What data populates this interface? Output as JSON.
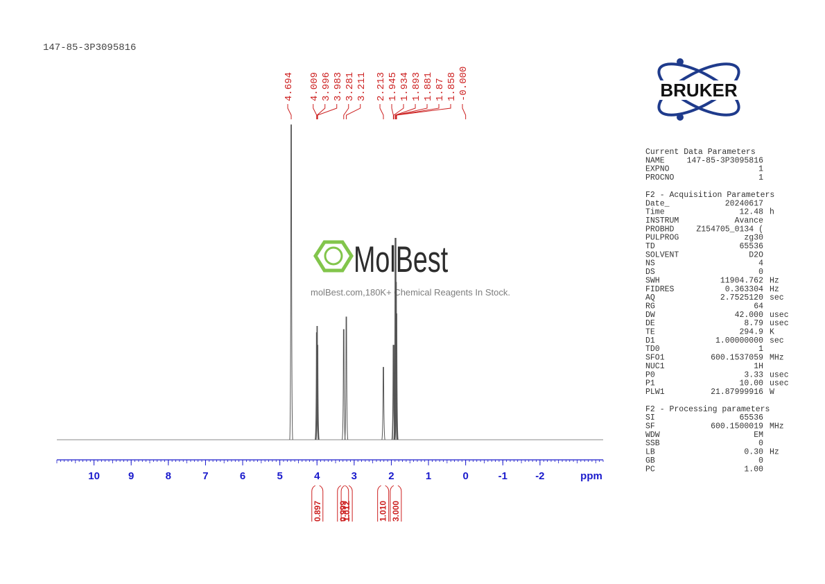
{
  "header": {
    "title": "147-85-3P3095816"
  },
  "watermark": {
    "brand": "MolBest",
    "tagline": "molBest.com,180K+ Chemical Reagents In Stock."
  },
  "logo": {
    "text": "BRUKER"
  },
  "chart_data": {
    "type": "nmr",
    "x": [
      4.694,
      4.009,
      3.996,
      3.983,
      3.281,
      3.211,
      2.213,
      1.945,
      1.934,
      1.893,
      1.881,
      1.87,
      1.858
    ],
    "values": [
      100,
      34,
      36,
      30,
      35,
      39,
      23,
      30,
      30,
      64,
      64,
      50,
      40
    ],
    "color": "#555555",
    "ylim": [
      0,
      100
    ],
    "xlim": [
      11,
      -3.7
    ],
    "xticks": [
      10,
      9,
      8,
      7,
      6,
      5,
      4,
      3,
      2,
      1,
      0,
      -1,
      -2
    ],
    "xlabel": "ppm",
    "tick_color": "#1a1acc",
    "peak_color": "#cc1f1f",
    "peak_labels": [
      4.694,
      4.009,
      3.996,
      3.983,
      3.281,
      3.211,
      2.213,
      1.945,
      1.934,
      1.893,
      1.881,
      1.87,
      1.858,
      {
        "value": 0,
        "label": "-0.000"
      }
    ],
    "integral_centers": [
      3.99,
      3.3,
      3.2,
      2.22,
      1.88
    ],
    "integrals": [
      0.897,
      0.999,
      1.012,
      {
        "value": 1.01,
        "label": "1.010"
      },
      {
        "value": 3,
        "label": "3.000"
      }
    ]
  },
  "parameters": {
    "sections": [
      {
        "title": "Current Data Parameters",
        "rows": [
          [
            "NAME",
            "147-85-3P3095816"
          ],
          [
            "EXPNO",
            "1"
          ],
          [
            "PROCNO",
            "1"
          ]
        ]
      },
      {
        "title": "F2 - Acquisition Parameters",
        "rows": [
          [
            "Date_",
            "20240617"
          ],
          [
            "Time",
            "12.48",
            "h"
          ],
          [
            "INSTRUM",
            "Avance"
          ],
          [
            "PROBHD",
            "Z154705_0134 ("
          ],
          [
            "PULPROG",
            "zg30"
          ],
          [
            "TD",
            "65536"
          ],
          [
            "SOLVENT",
            "D2O"
          ],
          [
            "NS",
            "4"
          ],
          [
            "DS",
            "0"
          ],
          [
            "SWH",
            "11904.762",
            "Hz"
          ],
          [
            "FIDRES",
            "0.363304",
            "Hz"
          ],
          [
            "AQ",
            "2.7525120",
            "sec"
          ],
          [
            "RG",
            "64"
          ],
          [
            "DW",
            "42.000",
            "usec"
          ],
          [
            "DE",
            "8.79",
            "usec"
          ],
          [
            "TE",
            "294.9",
            "K"
          ],
          [
            "D1",
            "1.00000000",
            "sec"
          ],
          [
            "TD0",
            "1"
          ],
          [
            "SFO1",
            "600.1537059",
            "MHz"
          ],
          [
            "NUC1",
            "1H"
          ],
          [
            "P0",
            "3.33",
            "usec"
          ],
          [
            "P1",
            "10.00",
            "usec"
          ],
          [
            "PLW1",
            "21.87999916",
            "W"
          ]
        ]
      },
      {
        "title": "F2 - Processing parameters",
        "rows": [
          [
            "SI",
            "65536"
          ],
          [
            "SF",
            "600.1500019",
            "MHz"
          ],
          [
            "WDW",
            "EM"
          ],
          [
            "SSB",
            "0"
          ],
          [
            "LB",
            "0.30",
            "Hz"
          ],
          [
            "GB",
            "0"
          ],
          [
            "PC",
            "1.00"
          ]
        ]
      }
    ]
  }
}
